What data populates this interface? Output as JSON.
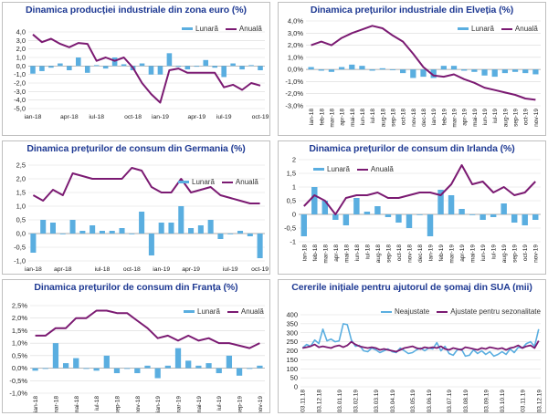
{
  "colors": {
    "bar": "#5aaee0",
    "line": "#7b1a72",
    "title": "#1f3a93",
    "grid": "#d9d9d9"
  },
  "chart_data": [
    {
      "type": "bar",
      "title": "Dinamica producției industriale din zona euro (%)",
      "legend": {
        "bar": "Lunară",
        "line": "Anuală"
      },
      "yticks": [
        "4,0",
        "3,0",
        "2,0",
        "1,0",
        "0,0",
        "-1,0",
        "-2,0",
        "-3,0",
        "-4,0",
        "-5,0"
      ],
      "ylim": [
        -5,
        4
      ],
      "xlabels": [
        "ian-18",
        "apr-18",
        "iul-18",
        "oct-18",
        "ian-19",
        "apr-19",
        "iul-19",
        "oct-19"
      ],
      "series": [
        {
          "name": "Lunară",
          "kind": "bar",
          "values": [
            -0.9,
            -0.6,
            -0.2,
            0.3,
            -0.5,
            1.0,
            -0.8,
            0.1,
            -0.3,
            1.0,
            0.2,
            -0.5,
            0.3,
            -1.0,
            -1.0,
            1.5,
            -0.1,
            -0.4,
            0.0,
            0.7,
            -0.2,
            -1.3,
            0.3,
            -0.4,
            0.1,
            -0.5
          ]
        },
        {
          "name": "Anuală",
          "kind": "line",
          "values": [
            3.7,
            2.8,
            3.2,
            2.6,
            2.2,
            2.7,
            2.6,
            0.6,
            1.0,
            0.6,
            1.0,
            -0.2,
            -2.0,
            -3.3,
            -4.3,
            -0.5,
            -0.3,
            -0.8,
            -0.8,
            -0.8,
            -0.8,
            -2.5,
            -2.2,
            -2.8,
            -2.0,
            -2.3
          ]
        }
      ]
    },
    {
      "type": "bar",
      "title": "Dinamica prețurilor industriale din Elveția (%)",
      "legend": {
        "bar": "Lunară",
        "line": "Anuală"
      },
      "yticks": [
        "4,0%",
        "3,0%",
        "2,0%",
        "1,0%",
        "0,0%",
        "-1,0%",
        "-2,0%",
        "-3,0%"
      ],
      "ylim": [
        -3,
        4
      ],
      "xlabels": [
        "ian-18",
        "feb-18",
        "mar-18",
        "apr-18",
        "mai-18",
        "iun-18",
        "iul-18",
        "aug-18",
        "sep-18",
        "oct-18",
        "nov-18",
        "dec-18",
        "ian-19",
        "feb-19",
        "mar-19",
        "apr-19",
        "mai-19",
        "iun-19",
        "iul-19",
        "aug-19",
        "sep-19",
        "oct-19",
        "nov-19"
      ],
      "series": [
        {
          "name": "Lunară",
          "kind": "bar",
          "values": [
            0.2,
            -0.1,
            -0.2,
            0.2,
            0.4,
            0.3,
            -0.1,
            0.1,
            0.0,
            -0.3,
            -0.7,
            -0.6,
            -0.7,
            0.3,
            0.3,
            -0.1,
            -0.2,
            -0.5,
            -0.6,
            -0.3,
            -0.2,
            -0.3,
            -0.4
          ]
        },
        {
          "name": "Anuală",
          "kind": "line",
          "values": [
            2.0,
            2.3,
            2.0,
            2.6,
            3.0,
            3.3,
            3.6,
            3.4,
            2.8,
            2.3,
            1.3,
            0.2,
            -0.5,
            -0.6,
            -0.4,
            -0.8,
            -1.1,
            -1.5,
            -1.7,
            -1.9,
            -2.1,
            -2.4,
            -2.5
          ]
        }
      ]
    },
    {
      "type": "bar",
      "title": "Dinamica prețurilor de consum din Germania (%)",
      "legend": {
        "bar": "Lunară",
        "line": "Anuală"
      },
      "yticks": [
        "2,5",
        "2,0",
        "1,5",
        "1,0",
        "0,5",
        "0,0",
        "-0,5",
        "-1,0"
      ],
      "ylim": [
        -1,
        2.5
      ],
      "xlabels": [
        "ian-18",
        "apr-18",
        "iul-18",
        "oct-18",
        "ian-19",
        "apr-19",
        "iul-19",
        "oct-19"
      ],
      "series": [
        {
          "name": "Lunară",
          "kind": "bar",
          "values": [
            -0.7,
            0.5,
            0.4,
            0.0,
            0.5,
            0.1,
            0.3,
            0.1,
            0.1,
            0.2,
            0.0,
            0.8,
            -0.8,
            0.4,
            0.4,
            1.0,
            0.2,
            0.3,
            0.5,
            -0.2,
            0.0,
            0.1,
            -0.1,
            -0.9
          ]
        },
        {
          "name": "Anuală",
          "kind": "line",
          "values": [
            1.4,
            1.2,
            1.6,
            1.4,
            2.2,
            2.1,
            2.0,
            2.0,
            2.0,
            2.0,
            2.4,
            2.3,
            1.7,
            1.5,
            1.5,
            2.0,
            1.5,
            1.6,
            1.7,
            1.4,
            1.3,
            1.2,
            1.1,
            1.1
          ]
        }
      ]
    },
    {
      "type": "bar",
      "title": "Dinamica prețurilor de consum din Irlanda (%)",
      "legend": {
        "bar": "Lunară",
        "line": "Anuală"
      },
      "yticks": [
        "2",
        "1,5",
        "1",
        "0,5",
        "0",
        "-0,5",
        "-1"
      ],
      "ylim": [
        -1,
        2
      ],
      "xlabels": [
        "ian-18",
        "feb-18",
        "mar-18",
        "apr-18",
        "mai-18",
        "iun-18",
        "iul-18",
        "aug-18",
        "sep-18",
        "oct-18",
        "nov-18",
        "dec-18",
        "ian-19",
        "feb-19",
        "mar-19",
        "apr-19",
        "mai-19",
        "iun-19",
        "iul-19",
        "aug-19",
        "sep-19",
        "oct-19",
        "nov-19"
      ],
      "series": [
        {
          "name": "Lunară",
          "kind": "bar",
          "values": [
            -0.8,
            1.0,
            0.5,
            -0.2,
            -0.4,
            0.6,
            0.1,
            0.3,
            -0.1,
            -0.3,
            -0.5,
            0.0,
            -0.8,
            0.9,
            0.7,
            0.2,
            0.0,
            -0.2,
            -0.1,
            0.4,
            -0.3,
            -0.4,
            -0.2
          ]
        },
        {
          "name": "Anuală",
          "kind": "line",
          "values": [
            0.3,
            0.7,
            0.5,
            0.0,
            0.6,
            0.7,
            0.7,
            0.8,
            0.6,
            0.6,
            0.7,
            0.8,
            0.8,
            0.7,
            1.1,
            1.8,
            1.1,
            1.2,
            0.8,
            1.0,
            0.7,
            0.8,
            1.2
          ]
        }
      ]
    },
    {
      "type": "bar",
      "title": "Dinamica prețurilor de consum din Franța (%)",
      "legend": {
        "bar": "Lunară",
        "line": "Anuală"
      },
      "yticks": [
        "2,5%",
        "2,0%",
        "1,5%",
        "1,0%",
        "0,5%",
        "0,0%",
        "-0,5%",
        "-1,0%"
      ],
      "ylim": [
        -1,
        2.5
      ],
      "xlabels": [
        "ian-18",
        "mar-18",
        "mai-18",
        "iul-18",
        "sep-18",
        "nov-18",
        "ian-19",
        "mar-19",
        "mai-19",
        "iul-19",
        "sep-19",
        "nov-19"
      ],
      "series": [
        {
          "name": "Lunară",
          "kind": "bar",
          "values": [
            -0.1,
            0.0,
            1.0,
            0.2,
            0.4,
            0.0,
            -0.1,
            0.5,
            -0.2,
            0.0,
            -0.2,
            0.1,
            -0.4,
            0.1,
            0.8,
            0.3,
            0.1,
            0.2,
            -0.2,
            0.5,
            -0.3,
            0.0,
            0.1
          ]
        },
        {
          "name": "Anuală",
          "kind": "line",
          "values": [
            1.3,
            1.3,
            1.6,
            1.6,
            2.0,
            2.0,
            2.3,
            2.3,
            2.2,
            2.2,
            1.9,
            1.6,
            1.2,
            1.3,
            1.1,
            1.3,
            1.1,
            1.2,
            1.0,
            1.0,
            0.9,
            0.8,
            1.0
          ]
        }
      ]
    },
    {
      "type": "line",
      "title": "Cererile inițiale pentru ajutorul de șomaj din SUA (mii)",
      "legend": {
        "a": "Neajustate",
        "b": "Ajustate pentru sezonalitate"
      },
      "yticks": [
        "400",
        "350",
        "300",
        "250",
        "200",
        "150",
        "100",
        "50",
        "0"
      ],
      "ylim": [
        0,
        400
      ],
      "xlabels": [
        "03.11.18",
        "03.12.18",
        "03.01.19",
        "03.02.19",
        "03.03.19",
        "03.04.19",
        "03.05.19",
        "03.06.19",
        "03.07.19",
        "03.08.19",
        "03.09.19",
        "03.10.19",
        "03.11.19",
        "03.12.19"
      ],
      "series": [
        {
          "name": "Neajustate",
          "values": [
            215,
            235,
            225,
            260,
            240,
            320,
            255,
            265,
            250,
            255,
            350,
            345,
            260,
            225,
            230,
            200,
            195,
            215,
            205,
            190,
            200,
            210,
            195,
            190,
            215,
            200,
            185,
            190,
            205,
            215,
            200,
            215,
            210,
            245,
            200,
            225,
            185,
            175,
            205,
            210,
            170,
            175,
            205,
            185,
            200,
            180,
            195,
            170,
            180,
            195,
            180,
            210,
            190,
            220,
            215,
            240,
            250,
            225,
            320
          ]
        },
        {
          "name": "Ajustate pentru sezonalitate",
          "values": [
            215,
            220,
            225,
            235,
            220,
            225,
            220,
            215,
            225,
            230,
            220,
            230,
            250,
            235,
            225,
            220,
            215,
            220,
            215,
            205,
            210,
            205,
            200,
            195,
            205,
            215,
            220,
            225,
            215,
            210,
            220,
            215,
            220,
            215,
            225,
            210,
            205,
            215,
            210,
            205,
            220,
            215,
            210,
            205,
            215,
            210,
            220,
            215,
            210,
            215,
            205,
            215,
            220,
            230,
            215,
            225,
            230,
            215,
            255
          ]
        }
      ]
    }
  ]
}
